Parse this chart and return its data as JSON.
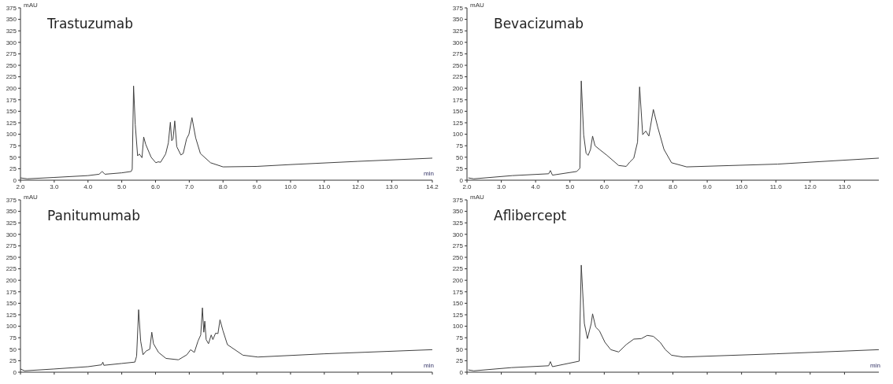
{
  "chart_data": [
    {
      "type": "line",
      "title": "Trastuzumab",
      "xlabel": "min",
      "ylabel": "mAU",
      "color": "#404040",
      "xlim": [
        2,
        14.2
      ],
      "ylim": [
        0,
        375
      ],
      "xticks": [
        {
          "value": 2,
          "label": "2.0"
        },
        {
          "value": 3,
          "label": "3.0"
        },
        {
          "value": 4,
          "label": "4.0"
        },
        {
          "value": 5,
          "label": "5.0"
        },
        {
          "value": 6,
          "label": "6.0"
        },
        {
          "value": 7,
          "label": "7.0"
        },
        {
          "value": 8,
          "label": "8.0"
        },
        {
          "value": 9,
          "label": "9.0"
        },
        {
          "value": 10,
          "label": "10.0"
        },
        {
          "value": 11,
          "label": "11.0"
        },
        {
          "value": 12,
          "label": "12.0"
        },
        {
          "value": 13,
          "label": "13.0"
        },
        14.2
      ],
      "yticks": [
        0,
        25,
        50,
        75,
        100,
        125,
        150,
        175,
        200,
        225,
        250,
        275,
        300,
        325,
        350,
        375
      ],
      "x": [
        2.0,
        2.2,
        3.0,
        4.0,
        4.33,
        4.42,
        4.5,
        5.0,
        5.28,
        5.31,
        5.35,
        5.4,
        5.47,
        5.52,
        5.6,
        5.65,
        5.71,
        5.87,
        6.01,
        6.08,
        6.15,
        6.3,
        6.38,
        6.44,
        6.48,
        6.52,
        6.57,
        6.63,
        6.75,
        6.82,
        6.92,
        6.99,
        7.08,
        7.19,
        7.33,
        7.63,
        8.0,
        9.0,
        10.0,
        12.0,
        14.2
      ],
      "values": [
        5,
        3,
        6,
        10,
        13,
        19,
        13,
        16,
        19,
        24,
        205,
        121,
        53,
        57,
        49,
        94,
        78,
        50,
        38,
        40,
        39,
        57,
        81,
        126,
        86,
        90,
        129,
        73,
        55,
        58,
        90,
        100,
        136,
        92,
        58,
        38,
        29,
        30,
        34,
        41,
        48
      ]
    },
    {
      "type": "line",
      "title": "Bevacizumab",
      "ylabel": "mAU",
      "color": "#404040",
      "xlim": [
        2,
        14
      ],
      "ylim": [
        0,
        375
      ],
      "xticks": [
        {
          "value": 2,
          "label": "2.0"
        },
        {
          "value": 3,
          "label": "3.0"
        },
        {
          "value": 4,
          "label": "4.0"
        },
        {
          "value": 5,
          "label": "5.0"
        },
        {
          "value": 6,
          "label": "6.0"
        },
        {
          "value": 7,
          "label": "7.0"
        },
        {
          "value": 8,
          "label": "8.0"
        },
        {
          "value": 9,
          "label": "9.0"
        },
        {
          "value": 10,
          "label": "10.0"
        },
        {
          "value": 11,
          "label": "11.0"
        },
        {
          "value": 12,
          "label": "12.0"
        },
        {
          "value": 13,
          "label": "13.0"
        }
      ],
      "yticks": [
        0,
        25,
        50,
        75,
        100,
        125,
        150,
        175,
        200,
        225,
        250,
        275,
        300,
        325,
        350,
        375
      ],
      "x": [
        2.04,
        2.2,
        3.32,
        4.38,
        4.43,
        4.49,
        5.2,
        5.29,
        5.33,
        5.4,
        5.47,
        5.53,
        5.6,
        5.66,
        5.73,
        5.86,
        6.08,
        6.42,
        6.64,
        6.75,
        6.86,
        6.97,
        7.03,
        7.12,
        7.21,
        7.3,
        7.43,
        7.56,
        7.74,
        7.96,
        8.4,
        11.05,
        14.0
      ],
      "values": [
        5,
        3,
        10,
        14,
        21,
        11,
        19,
        26,
        216,
        99,
        59,
        54,
        67,
        96,
        75,
        67,
        54,
        32,
        30,
        40,
        48,
        83,
        203,
        99,
        107,
        96,
        154,
        115,
        67,
        38,
        29,
        35,
        48
      ]
    },
    {
      "type": "line",
      "title": "Panitumumab",
      "xlabel": "min",
      "ylabel": "mAU",
      "color": "#404040",
      "xlim": [
        2,
        14.2
      ],
      "ylim": [
        0,
        375
      ],
      "tick_labels": "y",
      "xticks": [
        2,
        3,
        4,
        5,
        6,
        7,
        8,
        9,
        10,
        11,
        12,
        13,
        14.2
      ],
      "yticks": [
        0,
        25,
        50,
        75,
        100,
        125,
        150,
        175,
        200,
        225,
        250,
        275,
        300,
        325,
        350,
        375
      ],
      "x": [
        2.0,
        2.12,
        3.0,
        4.0,
        4.4,
        4.44,
        4.47,
        5.0,
        5.39,
        5.44,
        5.5,
        5.56,
        5.63,
        5.72,
        5.83,
        5.89,
        5.94,
        6.09,
        6.31,
        6.68,
        6.93,
        7.04,
        7.15,
        7.26,
        7.34,
        7.39,
        7.43,
        7.46,
        7.5,
        7.57,
        7.65,
        7.7,
        7.78,
        7.85,
        7.91,
        8.0,
        8.13,
        8.59,
        9.03,
        11.0,
        14.2
      ],
      "values": [
        7,
        3,
        7,
        12,
        16,
        22,
        15,
        19,
        22,
        35,
        136,
        68,
        38,
        46,
        50,
        87,
        62,
        43,
        30,
        27,
        38,
        49,
        43,
        68,
        81,
        140,
        87,
        111,
        71,
        62,
        81,
        71,
        85,
        84,
        114,
        90,
        60,
        37,
        33,
        40,
        49
      ]
    },
    {
      "type": "line",
      "title": "Aflibercept",
      "xlabel": "min",
      "ylabel": "mAU",
      "color": "#404040",
      "xlim": [
        2,
        14
      ],
      "ylim": [
        0,
        375
      ],
      "tick_labels": "y",
      "xticks": [
        2,
        3,
        4,
        5,
        6,
        7,
        8,
        9,
        10,
        11,
        12,
        13
      ],
      "yticks": [
        0,
        25,
        50,
        75,
        100,
        125,
        150,
        175,
        200,
        225,
        250,
        275,
        300,
        325,
        350,
        375
      ],
      "x": [
        2.04,
        2.2,
        3.3,
        4.38,
        4.43,
        4.49,
        5.27,
        5.33,
        5.42,
        5.51,
        5.62,
        5.66,
        5.75,
        5.86,
        6.02,
        6.19,
        6.42,
        6.64,
        6.86,
        7.08,
        7.25,
        7.43,
        7.63,
        7.78,
        7.96,
        8.29,
        11.0,
        14.0
      ],
      "values": [
        5,
        3,
        10,
        14,
        23,
        12,
        24,
        233,
        106,
        73,
        106,
        127,
        98,
        90,
        65,
        49,
        44,
        60,
        72,
        73,
        80,
        78,
        65,
        49,
        37,
        33,
        40,
        49
      ]
    }
  ]
}
